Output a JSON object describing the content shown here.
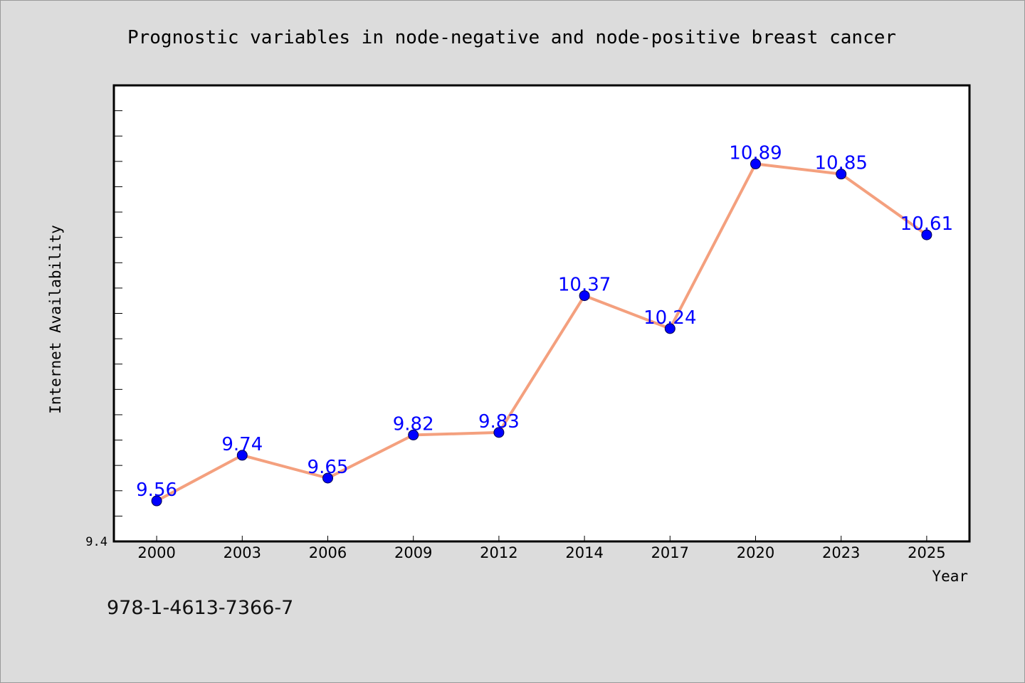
{
  "chart_data": {
    "type": "line",
    "title": "Prognostic variables in node-negative and node-positive breast cancer",
    "xlabel": "Year",
    "ylabel": "Internet Availability",
    "categories": [
      "2000",
      "2003",
      "2006",
      "2009",
      "2012",
      "2014",
      "2017",
      "2020",
      "2023",
      "2025"
    ],
    "series": [
      {
        "values": [
          9.56,
          9.74,
          9.65,
          9.82,
          9.83,
          10.37,
          10.24,
          10.89,
          10.85,
          10.61
        ]
      }
    ],
    "data_labels": [
      "9.56",
      "9.74",
      "9.65",
      "9.82",
      "9.83",
      "10.37",
      "10.24",
      "10.89",
      "10.85",
      "10.61"
    ],
    "ylim": [
      9.4,
      11.2
    ],
    "yticks_labeled": [
      "9.4"
    ],
    "grid": false,
    "legend": "none",
    "colors": {
      "line": "#f4a07e",
      "marker": "#0000ff",
      "label": "#0000ff"
    }
  },
  "footer": {
    "isbn": "978-1-4613-7366-7"
  }
}
